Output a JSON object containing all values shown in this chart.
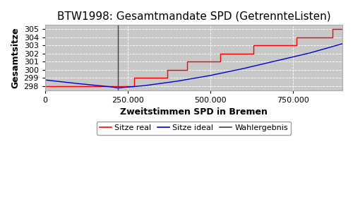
{
  "title": "BTW1998: Gesamtmandate SPD (GetrennteListen)",
  "xlabel": "Zweitstimmen SPD in Bremen",
  "ylabel": "Gesamtsitze",
  "xlim": [
    0,
    900000
  ],
  "ylim": [
    297.5,
    305.5
  ],
  "yticks": [
    298,
    299,
    300,
    301,
    302,
    303,
    304,
    305
  ],
  "xticks": [
    0,
    250000,
    500000,
    750000
  ],
  "xticklabels": [
    "0",
    "250.000",
    "500.000",
    "750.000"
  ],
  "bg_color": "#c8c8c8",
  "fig_bg_color": "#ffffff",
  "wahlergebnis_x": 220000,
  "real_x": [
    0,
    220000,
    220000,
    270000,
    270000,
    370000,
    370000,
    430000,
    430000,
    510000,
    510000,
    530000,
    530000,
    630000,
    630000,
    680000,
    680000,
    760000,
    760000,
    840000,
    840000,
    870000,
    870000,
    900000
  ],
  "real_y": [
    298,
    298,
    298,
    298,
    299,
    299,
    300,
    300,
    301,
    301,
    301,
    301,
    302,
    302,
    303,
    303,
    303,
    303,
    304,
    304,
    304,
    304,
    305,
    305
  ],
  "ideal_x": [
    0,
    100000,
    200000,
    220000,
    300000,
    400000,
    500000,
    600000,
    700000,
    800000,
    870000,
    900000
  ],
  "ideal_y": [
    298.75,
    298.3,
    297.9,
    297.77,
    298.05,
    298.6,
    299.3,
    300.15,
    301.1,
    302.05,
    302.85,
    303.2
  ],
  "line_real_color": "#ff0000",
  "line_ideal_color": "#0000cc",
  "wahlergebnis_color": "#404040",
  "grid_color": "#ffffff",
  "legend_labels": [
    "Sitze real",
    "Sitze ideal",
    "Wahlergebnis"
  ],
  "legend_colors": [
    "#ff0000",
    "#0000cc",
    "#404040"
  ],
  "title_fontsize": 11,
  "axis_fontsize": 9,
  "tick_fontsize": 8,
  "legend_fontsize": 8
}
